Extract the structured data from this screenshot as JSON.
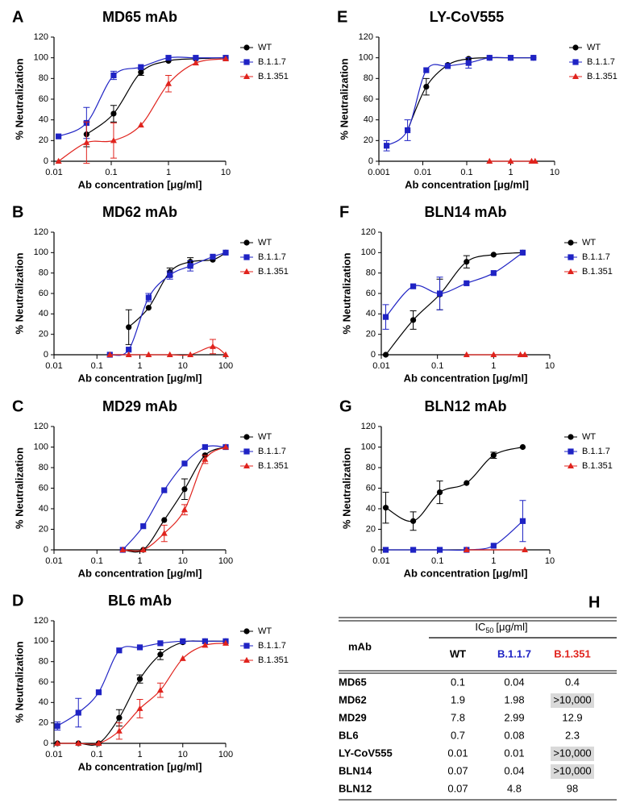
{
  "chart_data": [
    {
      "type": "scatter",
      "panel": "A",
      "title": "MD65 mAb",
      "xlabel": "Ab concentration [μg/ml]",
      "ylabel": "% Neutralization",
      "xscale": "log",
      "xlim": [
        0.01,
        10
      ],
      "xticks": [
        0.01,
        0.1,
        1,
        10
      ],
      "ylim": [
        0,
        120
      ],
      "yticks": [
        0,
        20,
        40,
        60,
        80,
        100,
        120
      ],
      "series": [
        {
          "name": "WT",
          "color": "#000000",
          "marker": "circle",
          "x": [
            0.037,
            0.11,
            0.33,
            1,
            3,
            10
          ],
          "values": [
            26,
            46,
            86,
            97,
            99,
            100
          ],
          "errors": [
            12,
            8,
            3,
            null,
            null,
            null
          ]
        },
        {
          "name": "B.1.1.7",
          "color": "#1f23c4",
          "marker": "square",
          "x": [
            0.012,
            0.037,
            0.11,
            0.33,
            1,
            3,
            10
          ],
          "values": [
            24,
            37,
            83,
            91,
            100,
            100,
            100
          ],
          "errors": [
            null,
            15,
            4,
            null,
            null,
            null,
            null
          ]
        },
        {
          "name": "B.1.351",
          "color": "#e0231d",
          "marker": "triangle",
          "x": [
            0.012,
            0.037,
            0.11,
            0.33,
            1,
            3,
            10
          ],
          "values": [
            0,
            18,
            20,
            35,
            75,
            95,
            99
          ],
          "errors": [
            null,
            20,
            17,
            null,
            8,
            null,
            null
          ]
        }
      ]
    },
    {
      "type": "scatter",
      "panel": "B",
      "title": "MD62 mAb",
      "xlabel": "Ab concentration [μg/ml]",
      "ylabel": "% Neutralization",
      "xscale": "log",
      "xlim": [
        0.01,
        100
      ],
      "xticks": [
        0.01,
        0.1,
        1,
        10,
        100
      ],
      "ylim": [
        0,
        120
      ],
      "yticks": [
        0,
        20,
        40,
        60,
        80,
        100,
        120
      ],
      "series": [
        {
          "name": "WT",
          "color": "#000000",
          "marker": "circle",
          "x": [
            0.55,
            1.6,
            5,
            15,
            50,
            100
          ],
          "values": [
            27,
            46,
            81,
            91,
            93,
            100
          ],
          "errors": [
            17,
            null,
            4,
            4,
            null,
            null
          ]
        },
        {
          "name": "B.1.1.7",
          "color": "#1f23c4",
          "marker": "square",
          "x": [
            0.2,
            0.55,
            1.6,
            5,
            15,
            50,
            100
          ],
          "values": [
            0,
            5,
            56,
            78,
            87,
            96,
            100
          ],
          "errors": [
            null,
            null,
            4,
            4,
            5,
            null,
            null
          ]
        },
        {
          "name": "B.1.351",
          "color": "#e0231d",
          "marker": "triangle",
          "x": [
            0.2,
            0.55,
            1.6,
            5,
            15,
            50,
            100
          ],
          "values": [
            0,
            0,
            0,
            0,
            0,
            8,
            0
          ],
          "errors": [
            null,
            null,
            null,
            null,
            null,
            7,
            null
          ]
        }
      ]
    },
    {
      "type": "scatter",
      "panel": "C",
      "title": "MD29 mAb",
      "xlabel": "Ab concentration [μg/ml]",
      "ylabel": "% Neutralization",
      "xscale": "log",
      "xlim": [
        0.01,
        100
      ],
      "xticks": [
        0.01,
        0.1,
        1,
        10,
        100
      ],
      "ylim": [
        0,
        120
      ],
      "yticks": [
        0,
        20,
        40,
        60,
        80,
        100,
        120
      ],
      "series": [
        {
          "name": "WT",
          "color": "#000000",
          "marker": "circle",
          "x": [
            0.4,
            1.2,
            3.7,
            11,
            33,
            100
          ],
          "values": [
            0,
            0,
            29,
            59,
            92,
            100
          ],
          "errors": [
            null,
            null,
            null,
            10,
            null,
            null
          ]
        },
        {
          "name": "B.1.1.7",
          "color": "#1f23c4",
          "marker": "square",
          "x": [
            0.4,
            1.2,
            3.7,
            11,
            33,
            100
          ],
          "values": [
            0,
            23,
            58,
            84,
            100,
            100
          ],
          "errors": [
            null,
            null,
            null,
            null,
            null,
            null
          ]
        },
        {
          "name": "B.1.351",
          "color": "#e0231d",
          "marker": "triangle",
          "x": [
            0.4,
            1.2,
            3.7,
            11,
            33,
            100
          ],
          "values": [
            0,
            0,
            16,
            39,
            88,
            100
          ],
          "errors": [
            null,
            null,
            8,
            5,
            4,
            null
          ]
        }
      ]
    },
    {
      "type": "scatter",
      "panel": "D",
      "title": "BL6 mAb",
      "xlabel": "Ab concentration [μg/ml]",
      "ylabel": "% Neutralization",
      "xscale": "log",
      "xlim": [
        0.01,
        100
      ],
      "xticks": [
        0.01,
        0.1,
        1,
        10,
        100
      ],
      "ylim": [
        0,
        120
      ],
      "yticks": [
        0,
        20,
        40,
        60,
        80,
        100,
        120
      ],
      "series": [
        {
          "name": "WT",
          "color": "#000000",
          "marker": "circle",
          "x": [
            0.012,
            0.037,
            0.11,
            0.33,
            1,
            3,
            10,
            33,
            100
          ],
          "values": [
            0,
            0,
            0,
            25,
            63,
            87,
            99,
            100,
            100
          ],
          "errors": [
            null,
            null,
            null,
            8,
            4,
            5,
            null,
            null,
            null
          ]
        },
        {
          "name": "B.1.1.7",
          "color": "#1f23c4",
          "marker": "square",
          "x": [
            0.012,
            0.037,
            0.11,
            0.33,
            1,
            3,
            10,
            33,
            100
          ],
          "values": [
            17,
            30,
            50,
            91,
            94,
            98,
            100,
            100,
            100
          ],
          "errors": [
            4,
            14,
            null,
            null,
            null,
            null,
            null,
            null,
            null
          ]
        },
        {
          "name": "B.1.351",
          "color": "#e0231d",
          "marker": "triangle",
          "x": [
            0.012,
            0.037,
            0.11,
            0.33,
            1,
            3,
            10,
            33,
            100
          ],
          "values": [
            0,
            0,
            0,
            12,
            34,
            52,
            83,
            96,
            98
          ],
          "errors": [
            null,
            null,
            null,
            8,
            9,
            7,
            null,
            null,
            null
          ]
        }
      ]
    },
    {
      "type": "scatter",
      "panel": "E",
      "title": "LY-CoV555",
      "xlabel": "Ab concentration [μg/ml]",
      "ylabel": "% Neutralization",
      "xscale": "log",
      "xlim": [
        0.001,
        10
      ],
      "xticks": [
        0.001,
        0.01,
        0.1,
        1,
        10
      ],
      "ylim": [
        0,
        120
      ],
      "yticks": [
        0,
        20,
        40,
        60,
        80,
        100,
        120
      ],
      "series": [
        {
          "name": "WT",
          "color": "#000000",
          "marker": "circle",
          "x": [
            0.0045,
            0.012,
            0.037,
            0.11,
            0.33,
            1,
            3.3
          ],
          "values": [
            30,
            72,
            93,
            99,
            100,
            100,
            100
          ],
          "errors": [
            null,
            8,
            null,
            null,
            null,
            null,
            null
          ]
        },
        {
          "name": "B.1.1.7",
          "color": "#1f23c4",
          "marker": "square",
          "x": [
            0.0015,
            0.0045,
            0.012,
            0.037,
            0.11,
            0.33,
            1,
            3.3
          ],
          "values": [
            15,
            30,
            88,
            92,
            95,
            100,
            100,
            100
          ],
          "errors": [
            5,
            10,
            null,
            null,
            5,
            null,
            null,
            null
          ]
        },
        {
          "name": "B.1.351",
          "color": "#e0231d",
          "marker": "triangle",
          "x": [
            0.33,
            1,
            3,
            3.6
          ],
          "values": [
            0,
            0,
            0,
            0
          ],
          "errors": [
            null,
            null,
            null,
            null
          ]
        }
      ]
    },
    {
      "type": "scatter",
      "panel": "F",
      "title": "BLN14 mAb",
      "xlabel": "Ab concentration [μg/ml]",
      "ylabel": "% Neutralization",
      "xscale": "log",
      "xlim": [
        0.01,
        10
      ],
      "xticks": [
        0.01,
        0.1,
        1,
        10
      ],
      "ylim": [
        0,
        120
      ],
      "yticks": [
        0,
        20,
        40,
        60,
        80,
        100,
        120
      ],
      "series": [
        {
          "name": "WT",
          "color": "#000000",
          "marker": "circle",
          "x": [
            0.012,
            0.037,
            0.11,
            0.33,
            1,
            3.3
          ],
          "values": [
            0,
            34,
            59,
            91,
            98,
            100
          ],
          "errors": [
            null,
            9,
            15,
            6,
            null,
            null
          ]
        },
        {
          "name": "B.1.1.7",
          "color": "#1f23c4",
          "marker": "square",
          "x": [
            0.012,
            0.037,
            0.11,
            0.33,
            1,
            3.3
          ],
          "values": [
            37,
            67,
            60,
            70,
            80,
            100
          ],
          "errors": [
            12,
            null,
            16,
            null,
            null,
            null
          ]
        },
        {
          "name": "B.1.351",
          "color": "#e0231d",
          "marker": "triangle",
          "x": [
            0.33,
            1,
            3,
            3.6
          ],
          "values": [
            0,
            0,
            0,
            0
          ],
          "errors": [
            null,
            null,
            null,
            null
          ]
        }
      ]
    },
    {
      "type": "scatter",
      "panel": "G",
      "title": "BLN12 mAb",
      "xlabel": "Ab concentration [μg/ml]",
      "ylabel": "% Neutralization",
      "xscale": "log",
      "xlim": [
        0.01,
        10
      ],
      "xticks": [
        0.01,
        0.1,
        1,
        10
      ],
      "ylim": [
        0,
        120
      ],
      "yticks": [
        0,
        20,
        40,
        60,
        80,
        100,
        120
      ],
      "series": [
        {
          "name": "WT",
          "color": "#000000",
          "marker": "circle",
          "x": [
            0.012,
            0.037,
            0.11,
            0.33,
            1,
            3.3
          ],
          "values": [
            41,
            28,
            56,
            65,
            92,
            100
          ],
          "errors": [
            15,
            9,
            11,
            null,
            3,
            null
          ]
        },
        {
          "name": "B.1.1.7",
          "color": "#1f23c4",
          "marker": "square",
          "x": [
            0.012,
            0.037,
            0.11,
            0.33,
            1,
            3.3
          ],
          "values": [
            0,
            0,
            0,
            0,
            4,
            28
          ],
          "errors": [
            null,
            null,
            null,
            null,
            null,
            20
          ]
        },
        {
          "name": "B.1.351",
          "color": "#e0231d",
          "marker": "triangle",
          "x": [
            0.33,
            3.6
          ],
          "values": [
            0,
            0
          ],
          "errors": [
            null,
            null
          ]
        }
      ]
    }
  ],
  "table": {
    "panel": "H",
    "header": {
      "row_label": "mAb",
      "measure": "IC",
      "measure_subscript": "50",
      "unit": "[μg/ml]",
      "columns": [
        {
          "name": "WT",
          "color": "#000000"
        },
        {
          "name": "B.1.1.7",
          "color": "#1f23c4"
        },
        {
          "name": "B.1.351",
          "color": "#e0231d"
        }
      ]
    },
    "rows": [
      [
        "MD65",
        "0.1",
        "0.04",
        "0.4"
      ],
      [
        "MD62",
        "1.9",
        "1.98",
        ">10,000"
      ],
      [
        "MD29",
        "7.8",
        "2.99",
        "12.9"
      ],
      [
        "BL6",
        "0.7",
        "0.08",
        "2.3"
      ],
      [
        "LY-CoV555",
        "0.01",
        "0.01",
        ">10,000"
      ],
      [
        "BLN14",
        "0.07",
        "0.04",
        ">10,000"
      ],
      [
        "BLN12",
        "0.07",
        "4.8",
        "98"
      ]
    ]
  }
}
